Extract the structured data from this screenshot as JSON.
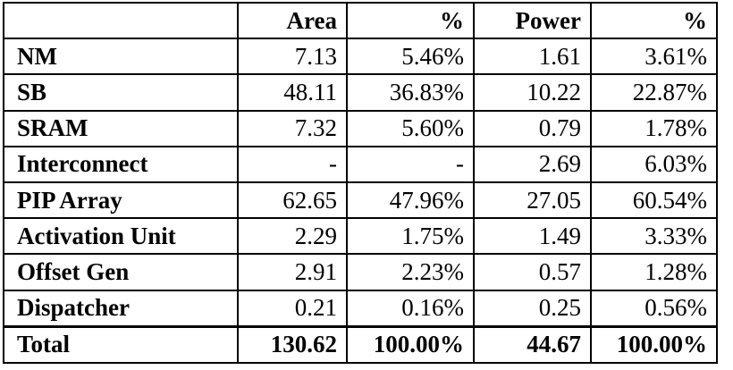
{
  "table": {
    "headers": [
      "",
      "Area",
      "%",
      "Power",
      "%"
    ],
    "rows": [
      [
        "NM",
        "7.13",
        "5.46%",
        "1.61",
        "3.61%"
      ],
      [
        "SB",
        "48.11",
        "36.83%",
        "10.22",
        "22.87%"
      ],
      [
        "SRAM",
        "7.32",
        "5.60%",
        "0.79",
        "1.78%"
      ],
      [
        "Interconnect",
        "-",
        "-",
        "2.69",
        "6.03%"
      ],
      [
        "PIP Array",
        "62.65",
        "47.96%",
        "27.05",
        "60.54%"
      ],
      [
        "Activation Unit",
        "2.29",
        "1.75%",
        "1.49",
        "3.33%"
      ],
      [
        "Offset Gen",
        "2.91",
        "2.23%",
        "0.57",
        "1.28%"
      ],
      [
        "Dispatcher",
        "0.21",
        "0.16%",
        "0.25",
        "0.56%"
      ]
    ],
    "total": [
      "Total",
      "130.62",
      "100.00%",
      "44.67",
      "100.00%"
    ]
  }
}
